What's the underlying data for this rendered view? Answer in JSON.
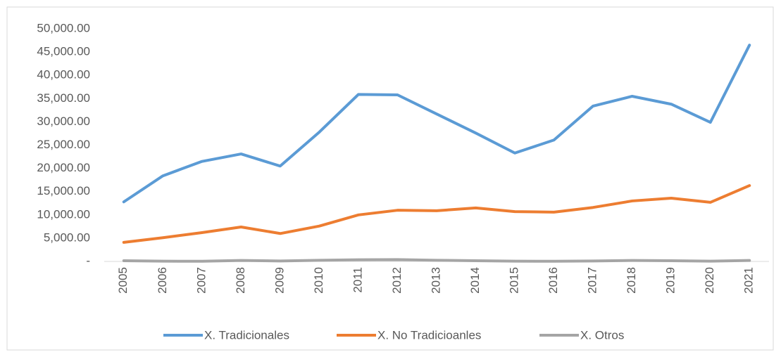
{
  "chart_data": {
    "type": "line",
    "categories": [
      "2005",
      "2006",
      "2007",
      "2008",
      "2009",
      "2010",
      "2011",
      "2012",
      "2013",
      "2014",
      "2015",
      "2016",
      "2017",
      "2018",
      "2019",
      "2020",
      "2021"
    ],
    "series": [
      {
        "name": "X. Tradicionales",
        "color": "#5b9bd5",
        "values": [
          12800,
          18400,
          21500,
          23100,
          20500,
          27800,
          35900,
          35800,
          31700,
          27600,
          23300,
          26100,
          33400,
          35500,
          33800,
          29900,
          46500
        ]
      },
      {
        "name": "X. No Tradicioanles",
        "color": "#ed7d31",
        "values": [
          4100,
          5100,
          6200,
          7400,
          6000,
          7600,
          10000,
          11000,
          10900,
          11500,
          10700,
          10600,
          11600,
          13000,
          13600,
          12700,
          16300
        ]
      },
      {
        "name": "X. Otros",
        "color": "#a5a5a5",
        "values": [
          150,
          50,
          40,
          200,
          100,
          250,
          350,
          400,
          250,
          150,
          50,
          40,
          100,
          200,
          150,
          50,
          200
        ]
      }
    ],
    "ylim": [
      0,
      50000
    ],
    "yticks": [
      {
        "value": 0,
        "label": "-"
      },
      {
        "value": 5000,
        "label": "5,000.00"
      },
      {
        "value": 10000,
        "label": "10,000.00"
      },
      {
        "value": 15000,
        "label": "15,000.00"
      },
      {
        "value": 20000,
        "label": "20,000.00"
      },
      {
        "value": 25000,
        "label": "25,000.00"
      },
      {
        "value": 30000,
        "label": "30,000.00"
      },
      {
        "value": 35000,
        "label": "35,000.00"
      },
      {
        "value": 40000,
        "label": "40,000.00"
      },
      {
        "value": 45000,
        "label": "45,000.00"
      },
      {
        "value": 50000,
        "label": "50,000.00"
      }
    ],
    "legend": "bottom"
  }
}
